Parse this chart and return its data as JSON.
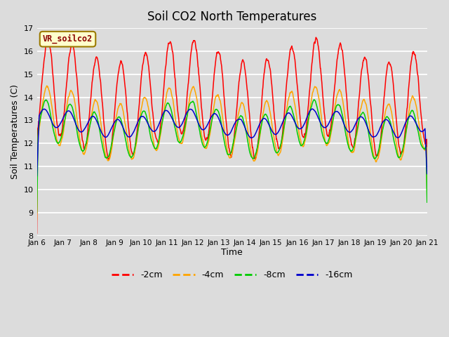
{
  "title": "Soil CO2 North Temperatures",
  "xlabel": "Time",
  "ylabel": "Soil Temperatures (C)",
  "ylim": [
    8.0,
    17.0
  ],
  "yticks": [
    8.0,
    9.0,
    10.0,
    11.0,
    12.0,
    13.0,
    14.0,
    15.0,
    16.0,
    17.0
  ],
  "xtick_labels": [
    "Jan 6",
    "Jan 7",
    "Jan 8",
    "Jan 9",
    "Jan 10",
    "Jan 11",
    "Jan 12",
    "Jan 13",
    "Jan 14",
    "Jan 15",
    "Jan 16",
    "Jan 17",
    "Jan 18",
    "Jan 19",
    "Jan 20",
    "Jan 21"
  ],
  "colors": {
    "-2cm": "#ff0000",
    "-4cm": "#ffa500",
    "-8cm": "#00cc00",
    "-16cm": "#0000cc"
  },
  "legend_label": "VR_soilco2",
  "background_color": "#dcdcdc",
  "grid_color": "#ffffff"
}
